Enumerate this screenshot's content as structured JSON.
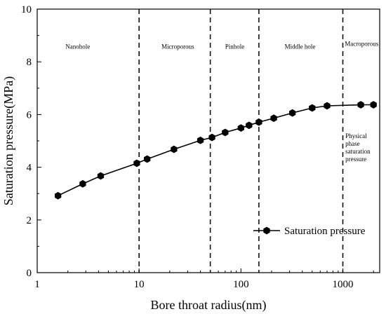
{
  "chart_data": {
    "type": "line",
    "title": "",
    "xlabel": "Bore throat radius(nm)",
    "ylabel": "Saturation pressure(MPa)",
    "xscale": "log",
    "xlim": [
      1,
      2300
    ],
    "ylim": [
      0,
      10
    ],
    "xticks": [
      1,
      10,
      100,
      1000
    ],
    "xtick_labels": [
      "1",
      "10",
      "100",
      "1000"
    ],
    "yticks": [
      0,
      2,
      4,
      6,
      8,
      10
    ],
    "ytick_labels": [
      "0",
      "2",
      "4",
      "6",
      "8",
      "10"
    ],
    "grid": false,
    "legend_position": "bottom-right",
    "series": [
      {
        "name": "Saturation pressure",
        "color": "#000000",
        "marker": "hexagon",
        "x": [
          1.6,
          2.8,
          4.2,
          9.5,
          12,
          22,
          40,
          52,
          70,
          100,
          120,
          150,
          210,
          320,
          500,
          700,
          1500,
          2000
        ],
        "y": [
          2.92,
          3.37,
          3.67,
          4.15,
          4.31,
          4.68,
          5.02,
          5.13,
          5.32,
          5.49,
          5.59,
          5.71,
          5.86,
          6.06,
          6.25,
          6.33,
          6.37,
          6.37
        ]
      }
    ],
    "dividers": [
      10,
      50,
      150,
      1000
    ],
    "regions": [
      {
        "label": "Nanohole",
        "x": 2.5,
        "y": 8.5
      },
      {
        "label": "Microporous",
        "x": 24,
        "y": 8.5
      },
      {
        "label": "Pinhole",
        "x": 87,
        "y": 8.5
      },
      {
        "label": "Middle hole",
        "x": 380,
        "y": 8.5
      },
      {
        "label": "Macroporous",
        "x": 1530,
        "y": 8.6
      }
    ],
    "annotation": {
      "lines": [
        "Physical",
        "phase",
        "saturation",
        "pressure"
      ],
      "x": 1060,
      "y": 5.1
    }
  }
}
